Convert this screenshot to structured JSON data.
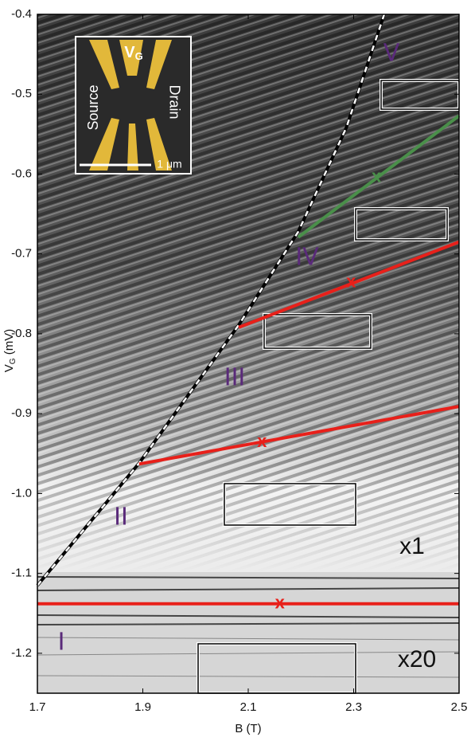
{
  "chart_data": {
    "type": "line",
    "xlabel": "B (T)",
    "ylabel": {
      "main": "V",
      "sub": "G",
      "unit": " (mV)"
    },
    "xlim": [
      1.7,
      2.5
    ],
    "xticks": [
      1.7,
      1.9,
      2.1,
      2.3,
      2.5
    ],
    "ylim": [
      -1.25,
      -0.4
    ],
    "yticks": [
      -0.4,
      -0.5,
      -0.6,
      -0.7,
      -0.8,
      -0.9,
      {
        "value": -1,
        "label": "-1.0"
      },
      -1.1,
      -1.2
    ],
    "series": [
      {
        "color": "#000000",
        "dashed": true,
        "x": [
          1.7,
          1.893,
          2.082,
          2.195,
          2.286,
          2.358
        ],
        "y": [
          -1.115,
          -0.962,
          -0.789,
          -0.672,
          -0.542,
          -0.4
        ]
      },
      {
        "color": "#4a8f4a",
        "x": [
          2.195,
          2.5
        ],
        "y": [
          -0.679,
          -0.527
        ],
        "marker_x": 2.343,
        "marker_y": -0.604
      },
      {
        "color": "#e8201a",
        "x": [
          2.082,
          2.5
        ],
        "y": [
          -0.792,
          -0.685
        ],
        "marker_x": 2.295,
        "marker_y": -0.736
      },
      {
        "color": "#e8201a",
        "x": [
          1.893,
          2.5
        ],
        "y": [
          -0.963,
          -0.891
        ],
        "marker_x": 2.126,
        "marker_y": -0.936
      },
      {
        "color": "#e8201a",
        "x": [
          1.7,
          2.5
        ],
        "y": [
          -1.138,
          -1.138
        ],
        "marker_x": 2.16,
        "marker_y": -1.138
      }
    ],
    "marker_symbol": "x",
    "annotations": [
      "V",
      "IV",
      "III",
      "II",
      "I"
    ],
    "scale_labels": [
      "x1",
      "x20"
    ],
    "inset": {
      "gate": "V",
      "gate_sub": "G",
      "left": "Source",
      "right": "Drain",
      "scale": "1 μm"
    }
  }
}
